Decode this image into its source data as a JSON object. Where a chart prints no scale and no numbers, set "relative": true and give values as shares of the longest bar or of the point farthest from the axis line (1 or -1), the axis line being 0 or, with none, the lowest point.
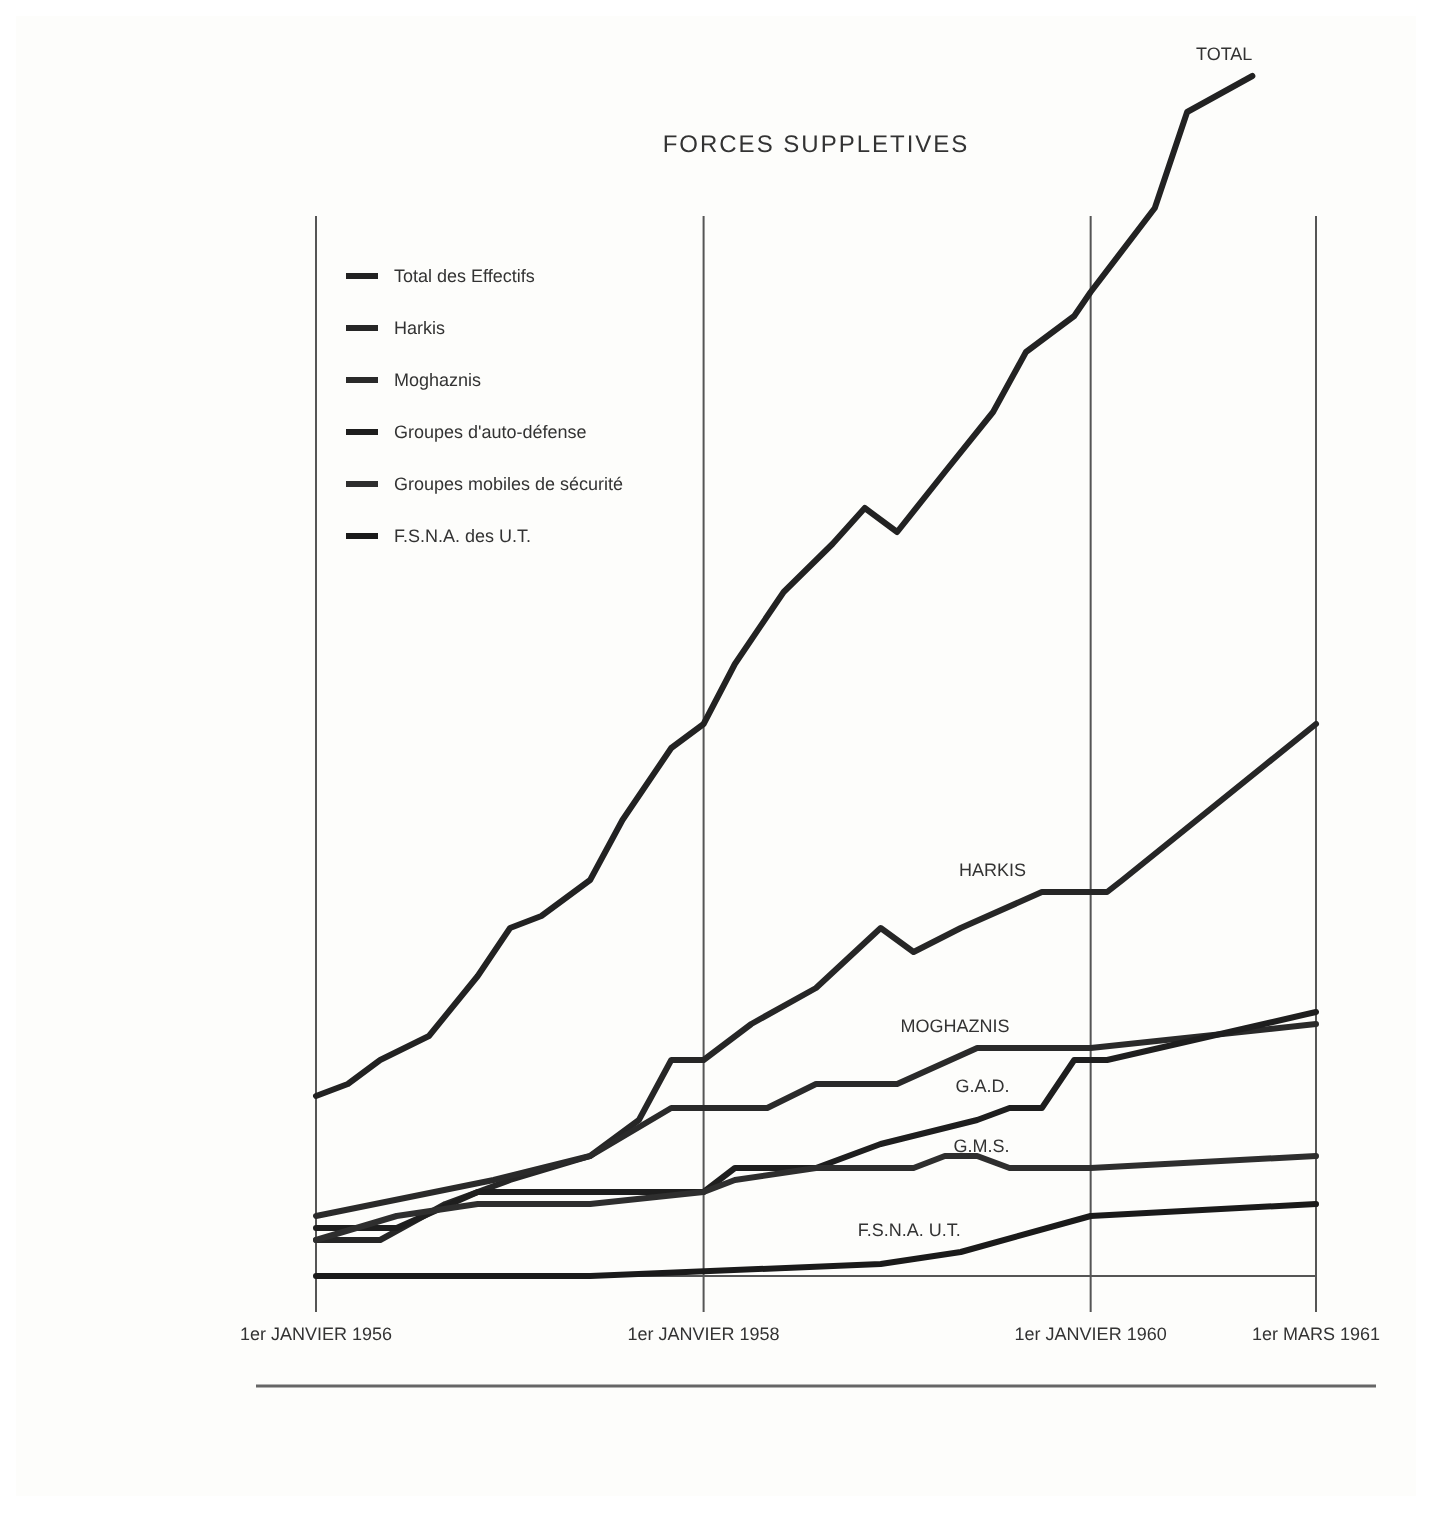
{
  "chart_data": {
    "type": "line",
    "title": "FORCES SUPPLETIVES",
    "relative": true,
    "xlim": [
      "1956-01",
      "1961-03"
    ],
    "xticks": [
      {
        "value": "1956-01",
        "label": "1er JANVIER 1956"
      },
      {
        "value": "1958-01",
        "label": "1er JANVIER 1958"
      },
      {
        "value": "1960-01",
        "label": "1er JANVIER 1960"
      },
      {
        "value": "1961-03",
        "label": "1er MARS 1961"
      }
    ],
    "tick_labels": "x",
    "legend": "top left",
    "grid": "x",
    "marker": "none",
    "line_style": "solid",
    "series": [
      {
        "name": "Total des Effectifs",
        "color": "#222222",
        "x": [
          "1956-01",
          "1956-03",
          "1956-05",
          "1956-08",
          "1956-11",
          "1957-01",
          "1957-03",
          "1957-06",
          "1957-08",
          "1957-11",
          "1958-01",
          "1958-03",
          "1958-06",
          "1958-09",
          "1958-11",
          "1959-01",
          "1959-04",
          "1959-07",
          "1959-09",
          "1959-12",
          "1960-01",
          "1960-05",
          "1960-07",
          "1960-11"
        ],
        "values": [
          0.15,
          0.16,
          0.18,
          0.2,
          0.25,
          0.29,
          0.3,
          0.33,
          0.38,
          0.44,
          0.46,
          0.51,
          0.57,
          0.61,
          0.64,
          0.62,
          0.67,
          0.72,
          0.77,
          0.8,
          0.82,
          0.89,
          0.97,
          1
        ]
      },
      {
        "name": "Harkis",
        "color": "#262626",
        "x": [
          "1956-01",
          "1956-05",
          "1956-09",
          "1957-01",
          "1957-06",
          "1957-09",
          "1957-11",
          "1958-01",
          "1958-04",
          "1958-08",
          "1958-12",
          "1959-02",
          "1959-05",
          "1959-10",
          "1960-02",
          "1960-03",
          "1961-03"
        ],
        "values": [
          0.03,
          0.03,
          0.06,
          0.08,
          0.1,
          0.13,
          0.18,
          0.18,
          0.21,
          0.24,
          0.29,
          0.27,
          0.29,
          0.32,
          0.32,
          0.33,
          0.46
        ]
      },
      {
        "name": "Moghaznis",
        "color": "#2a2a2a",
        "x": [
          "1956-01",
          "1956-12",
          "1957-06",
          "1957-11",
          "1958-05",
          "1958-08",
          "1959-01",
          "1959-06",
          "1960-01",
          "1961-03"
        ],
        "values": [
          0.05,
          0.08,
          0.1,
          0.14,
          0.14,
          0.16,
          0.16,
          0.19,
          0.19,
          0.21
        ]
      },
      {
        "name": "Groupes d'auto-défense",
        "color": "#1e1e1e",
        "x": [
          "1956-01",
          "1956-06",
          "1956-11",
          "1957-06",
          "1958-01",
          "1958-03",
          "1958-08",
          "1958-12",
          "1959-06",
          "1959-08",
          "1959-10",
          "1959-12",
          "1960-02",
          "1961-03"
        ],
        "values": [
          0.04,
          0.04,
          0.07,
          0.07,
          0.07,
          0.09,
          0.09,
          0.11,
          0.13,
          0.14,
          0.14,
          0.18,
          0.18,
          0.22
        ]
      },
      {
        "name": "Groupes mobiles de sécurité",
        "color": "#2e2e2e",
        "x": [
          "1956-01",
          "1956-06",
          "1956-11",
          "1957-06",
          "1958-01",
          "1958-03",
          "1958-08",
          "1959-02",
          "1959-04",
          "1959-06",
          "1959-08",
          "1960-01",
          "1961-03"
        ],
        "values": [
          0.03,
          0.05,
          0.06,
          0.06,
          0.07,
          0.08,
          0.09,
          0.09,
          0.1,
          0.1,
          0.09,
          0.09,
          0.1
        ]
      },
      {
        "name": "F.S.N.A. des U.T.",
        "color": "#1a1a1a",
        "x": [
          "1956-01",
          "1957-06",
          "1958-12",
          "1959-05",
          "1960-01",
          "1961-03"
        ],
        "values": [
          0,
          0,
          0.01,
          0.02,
          0.05,
          0.06
        ]
      }
    ],
    "annotations": [
      {
        "text": "TOTAL",
        "x": "1960-11",
        "y": 1
      },
      {
        "text": "HARKIS",
        "x": "1959-09",
        "y": 0.32
      },
      {
        "text": "MOGHAZNIS",
        "x": "1959-08",
        "y": 0.19
      },
      {
        "text": "G.A.D.",
        "x": "1959-08",
        "y": 0.14
      },
      {
        "text": "G.M.S.",
        "x": "1959-08",
        "y": 0.09
      },
      {
        "text": "F.S.N.A. U.T.",
        "x": "1959-05",
        "y": 0.02
      }
    ]
  }
}
